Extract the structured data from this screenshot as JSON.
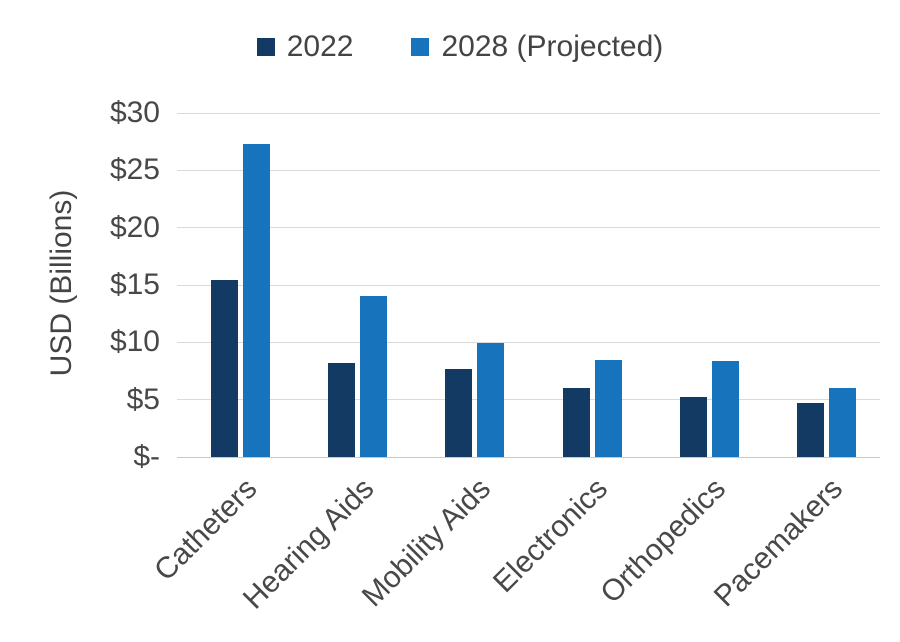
{
  "chart_data": {
    "type": "bar",
    "title": "",
    "categories": [
      "Catheters",
      "Hearing Aids",
      "Mobility Aids",
      "Electronics",
      "Orthopedics",
      "Pacemakers"
    ],
    "series": [
      {
        "name": "2022",
        "color": "#123A63",
        "values": [
          15.4,
          8.2,
          7.7,
          6.0,
          5.2,
          4.7
        ]
      },
      {
        "name": "2028 (Projected)",
        "color": "#1673BC",
        "values": [
          27.3,
          14.0,
          9.9,
          8.5,
          8.4,
          6.0
        ]
      }
    ],
    "xlabel": "",
    "ylabel": "USD (Billions)",
    "ylim": [
      0,
      30
    ],
    "ytick_step": 5,
    "ytick_labels": [
      "$-",
      "$5",
      "$10",
      "$15",
      "$20",
      "$25",
      "$30"
    ],
    "grid": "horizontal",
    "legend_position": "top"
  },
  "colors": {
    "gridline": "#DADADA",
    "axis_line": "#C8C8C8",
    "text": "#484848"
  }
}
